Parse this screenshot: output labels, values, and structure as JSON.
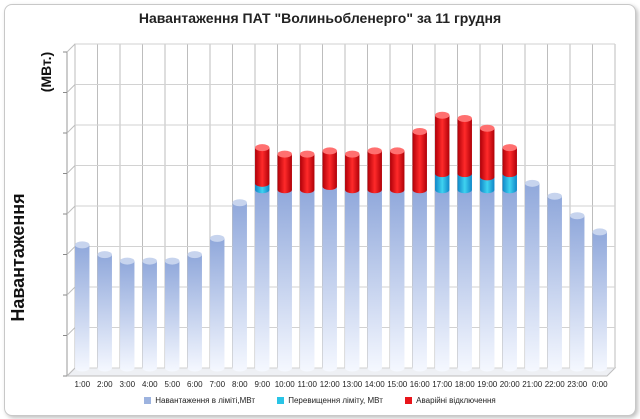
{
  "chart_data": {
    "type": "bar",
    "stacked": true,
    "title": "Навантаження ПАТ \"Волиньобленерго\" за 11 грудня",
    "ylabel": "Навантаження",
    "yunit": "(МВт.)",
    "ylim": [
      0,
      100
    ],
    "grid": true,
    "legend_position": "bottom",
    "categories": [
      "1:00",
      "2:00",
      "3:00",
      "4:00",
      "5:00",
      "6:00",
      "7:00",
      "8:00",
      "9:00",
      "10:00",
      "11:00",
      "12:00",
      "13:00",
      "14:00",
      "15:00",
      "16:00",
      "17:00",
      "18:00",
      "19:00",
      "20:00",
      "21:00",
      "22:00",
      "23:00",
      "0:00"
    ],
    "series": [
      {
        "name": "Навантаження в ліміті,МВт",
        "color": "#9db3df",
        "values": [
          38,
          35,
          33,
          33,
          33,
          35,
          40,
          51,
          55,
          55,
          55,
          56,
          55,
          55,
          55,
          55,
          55,
          55,
          55,
          55,
          57,
          53,
          47,
          42
        ]
      },
      {
        "name": "Перевищення ліміту, МВт",
        "color": "#29c4e6",
        "values": [
          0,
          0,
          0,
          0,
          0,
          0,
          0,
          0,
          2,
          0,
          0,
          0,
          0,
          0,
          0,
          0,
          5,
          5,
          4,
          5,
          0,
          0,
          0,
          0
        ]
      },
      {
        "name": "Аварійні відключення",
        "color": "#e8151b",
        "values": [
          0,
          0,
          0,
          0,
          0,
          0,
          0,
          0,
          11,
          11,
          11,
          11,
          11,
          12,
          12,
          18,
          18,
          17,
          15,
          8,
          0,
          0,
          0,
          0
        ]
      }
    ]
  }
}
